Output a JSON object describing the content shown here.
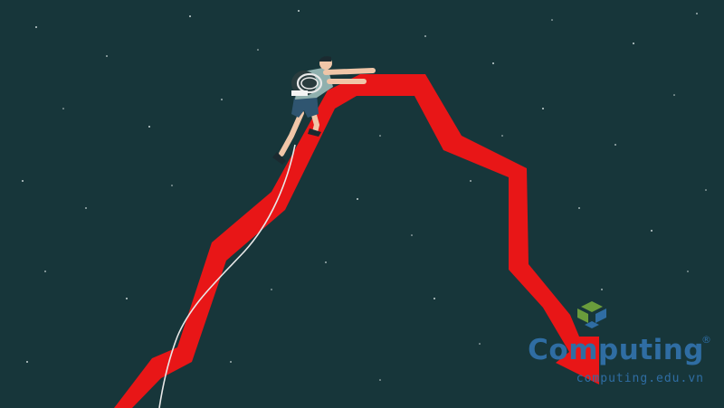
{
  "illustration": {
    "subject": "climber-on-graph-peak-icon",
    "colors": {
      "background": "#17363a",
      "arrow": "#e81617",
      "star": "#c8d4d4",
      "rope": "#e8e8e8"
    }
  },
  "watermark": {
    "name": "Computing",
    "registered_mark": "®",
    "url": "computing.edu.vn",
    "colors": {
      "text": "#2f6da3",
      "logo_green": "#6a9c3c",
      "logo_blue": "#2f6da3"
    }
  }
}
